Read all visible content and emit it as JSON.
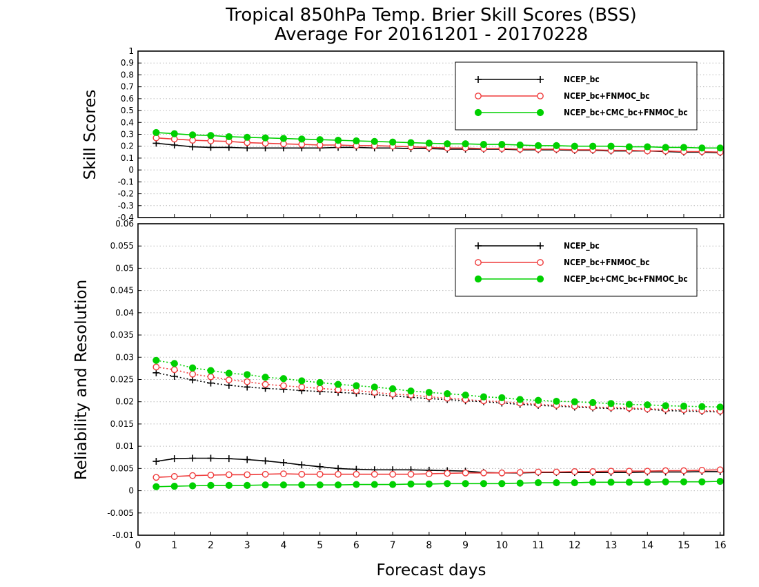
{
  "title_line1": "Tropical 850hPa Temp. Brier Skill Scores (BSS)",
  "title_line2": "Average For 20161201 - 20170228",
  "xlabel": "Forecast days",
  "colors": {
    "ncep": "#000000",
    "fnmoc": "#ef3b3b",
    "cmc": "#00d000",
    "grid": "#b8b8b8"
  },
  "chart_data": [
    {
      "type": "line",
      "panel": "top",
      "ylabel": "Skill Scores",
      "ylim": [
        -0.4,
        1
      ],
      "yticks": [
        "-0.4",
        "-0.3",
        "-0.2",
        "-0.1",
        "0",
        "0.1",
        "0.2",
        "0.3",
        "0.4",
        "0.5",
        "0.6",
        "0.7",
        "0.8",
        "0.9",
        "1"
      ],
      "xlim": [
        0,
        16.1
      ],
      "xticks": [
        "0",
        "1",
        "2",
        "3",
        "4",
        "5",
        "6",
        "7",
        "8",
        "9",
        "10",
        "11",
        "12",
        "13",
        "14",
        "15",
        "16"
      ],
      "grid": true,
      "legend_position": "top-right",
      "x": [
        0.5,
        1,
        1.5,
        2,
        2.5,
        3,
        3.5,
        4,
        4.5,
        5,
        5.5,
        6,
        6.5,
        7,
        7.5,
        8,
        8.5,
        9,
        9.5,
        10,
        10.5,
        11,
        11.5,
        12,
        12.5,
        13,
        13.5,
        14,
        14.5,
        15,
        15.5,
        16
      ],
      "series": [
        {
          "name": "NCEP_bc",
          "color_key": "ncep",
          "marker": "plus",
          "dash": "solid",
          "values": [
            0.225,
            0.21,
            0.195,
            0.19,
            0.19,
            0.185,
            0.185,
            0.185,
            0.185,
            0.185,
            0.19,
            0.19,
            0.185,
            0.185,
            0.18,
            0.18,
            0.175,
            0.175,
            0.175,
            0.175,
            0.17,
            0.17,
            0.17,
            0.165,
            0.165,
            0.16,
            0.16,
            0.16,
            0.155,
            0.15,
            0.15,
            0.145
          ]
        },
        {
          "name": "NCEP_bc+FNMOC_bc",
          "color_key": "fnmoc",
          "marker": "circle",
          "dash": "solid",
          "values": [
            0.27,
            0.26,
            0.25,
            0.245,
            0.24,
            0.23,
            0.225,
            0.22,
            0.215,
            0.21,
            0.21,
            0.205,
            0.205,
            0.2,
            0.195,
            0.19,
            0.185,
            0.185,
            0.18,
            0.18,
            0.175,
            0.175,
            0.175,
            0.17,
            0.17,
            0.165,
            0.165,
            0.16,
            0.16,
            0.155,
            0.155,
            0.15
          ]
        },
        {
          "name": "NCEP_bc+CMC_bc+FNMOC_bc",
          "color_key": "cmc",
          "marker": "dot",
          "dash": "solid",
          "values": [
            0.315,
            0.305,
            0.295,
            0.29,
            0.28,
            0.275,
            0.27,
            0.265,
            0.26,
            0.255,
            0.25,
            0.245,
            0.24,
            0.235,
            0.23,
            0.225,
            0.22,
            0.22,
            0.215,
            0.215,
            0.21,
            0.205,
            0.205,
            0.2,
            0.2,
            0.2,
            0.195,
            0.195,
            0.19,
            0.19,
            0.185,
            0.185
          ]
        }
      ]
    },
    {
      "type": "line",
      "panel": "bottom",
      "ylabel": "Reliability and Resolution",
      "ylim": [
        -0.01,
        0.06
      ],
      "yticks": [
        "-0.01",
        "-0.005",
        "0",
        "0.005",
        "0.01",
        "0.015",
        "0.02",
        "0.025",
        "0.03",
        "0.035",
        "0.04",
        "0.045",
        "0.05",
        "0.055",
        "0.06"
      ],
      "xlim": [
        0,
        16.1
      ],
      "xticks": [
        "0",
        "1",
        "2",
        "3",
        "4",
        "5",
        "6",
        "7",
        "8",
        "9",
        "10",
        "11",
        "12",
        "13",
        "14",
        "15",
        "16"
      ],
      "grid": true,
      "legend_position": "top-right",
      "x": [
        0.5,
        1,
        1.5,
        2,
        2.5,
        3,
        3.5,
        4,
        4.5,
        5,
        5.5,
        6,
        6.5,
        7,
        7.5,
        8,
        8.5,
        9,
        9.5,
        10,
        10.5,
        11,
        11.5,
        12,
        12.5,
        13,
        13.5,
        14,
        14.5,
        15,
        15.5,
        16
      ],
      "series": [
        {
          "name": "NCEP_bc",
          "color_key": "ncep",
          "marker": "plus",
          "dash": "dotted",
          "values": [
            0.0265,
            0.0257,
            0.0249,
            0.0242,
            0.0237,
            0.0233,
            0.023,
            0.0228,
            0.0225,
            0.0223,
            0.0221,
            0.0219,
            0.0216,
            0.0213,
            0.021,
            0.0207,
            0.0205,
            0.0202,
            0.02,
            0.0197,
            0.0194,
            0.0192,
            0.019,
            0.0188,
            0.0186,
            0.0185,
            0.0184,
            0.0183,
            0.018,
            0.0179,
            0.0178,
            0.0177
          ]
        },
        {
          "name": "NCEP_bc+FNMOC_bc",
          "color_key": "fnmoc",
          "marker": "circle",
          "dash": "dotted",
          "values": [
            0.0278,
            0.0272,
            0.0262,
            0.0256,
            0.0249,
            0.0245,
            0.0239,
            0.0236,
            0.0233,
            0.023,
            0.0227,
            0.0225,
            0.0221,
            0.0217,
            0.0215,
            0.0211,
            0.0208,
            0.0205,
            0.0202,
            0.02,
            0.0197,
            0.0194,
            0.0192,
            0.019,
            0.0188,
            0.0187,
            0.0186,
            0.0184,
            0.0183,
            0.0182,
            0.018,
            0.0179
          ]
        },
        {
          "name": "NCEP_bc+CMC_bc+FNMOC_bc",
          "color_key": "cmc",
          "marker": "dot",
          "dash": "dotted",
          "values": [
            0.0293,
            0.0286,
            0.0276,
            0.027,
            0.0264,
            0.0261,
            0.0255,
            0.0252,
            0.0247,
            0.0243,
            0.0239,
            0.0236,
            0.0233,
            0.0229,
            0.0224,
            0.0221,
            0.0218,
            0.0215,
            0.0211,
            0.0209,
            0.0205,
            0.0203,
            0.0201,
            0.02,
            0.0198,
            0.0196,
            0.0194,
            0.0193,
            0.0191,
            0.019,
            0.0189,
            0.0188
          ]
        },
        {
          "name": "NCEP_bc",
          "color_key": "ncep",
          "marker": "plus",
          "dash": "solid",
          "values": [
            0.0066,
            0.0072,
            0.0073,
            0.0073,
            0.0072,
            0.007,
            0.0067,
            0.0063,
            0.0058,
            0.0054,
            0.005,
            0.0048,
            0.0047,
            0.0047,
            0.0047,
            0.0046,
            0.0045,
            0.0044,
            0.0041,
            0.004,
            0.004,
            0.0041,
            0.0041,
            0.0041,
            0.0041,
            0.0041,
            0.0041,
            0.0042,
            0.0042,
            0.0042,
            0.0043,
            0.0043
          ]
        },
        {
          "name": "NCEP_bc+FNMOC_bc",
          "color_key": "fnmoc",
          "marker": "circle",
          "dash": "solid",
          "values": [
            0.003,
            0.0032,
            0.0034,
            0.0035,
            0.0036,
            0.0036,
            0.0037,
            0.0038,
            0.0037,
            0.0037,
            0.0037,
            0.0037,
            0.0037,
            0.0037,
            0.0037,
            0.0038,
            0.0039,
            0.004,
            0.004,
            0.004,
            0.0041,
            0.0042,
            0.0042,
            0.0043,
            0.0043,
            0.0044,
            0.0044,
            0.0044,
            0.0045,
            0.0045,
            0.0046,
            0.0047
          ]
        },
        {
          "name": "NCEP_bc+CMC_bc+FNMOC_bc",
          "color_key": "cmc",
          "marker": "dot",
          "dash": "solid",
          "values": [
            0.0009,
            0.001,
            0.0011,
            0.0012,
            0.0012,
            0.0012,
            0.0013,
            0.0013,
            0.0013,
            0.0013,
            0.0013,
            0.0014,
            0.0014,
            0.0014,
            0.0015,
            0.0015,
            0.0016,
            0.0016,
            0.0016,
            0.0016,
            0.0017,
            0.0018,
            0.0018,
            0.0018,
            0.0019,
            0.0019,
            0.0019,
            0.0019,
            0.002,
            0.002,
            0.002,
            0.0021
          ]
        }
      ]
    }
  ],
  "legend": [
    {
      "label": "NCEP_bc",
      "color_key": "ncep",
      "marker": "plus"
    },
    {
      "label": "NCEP_bc+FNMOC_bc",
      "color_key": "fnmoc",
      "marker": "circle"
    },
    {
      "label": "NCEP_bc+CMC_bc+FNMOC_bc",
      "color_key": "cmc",
      "marker": "dot"
    }
  ]
}
